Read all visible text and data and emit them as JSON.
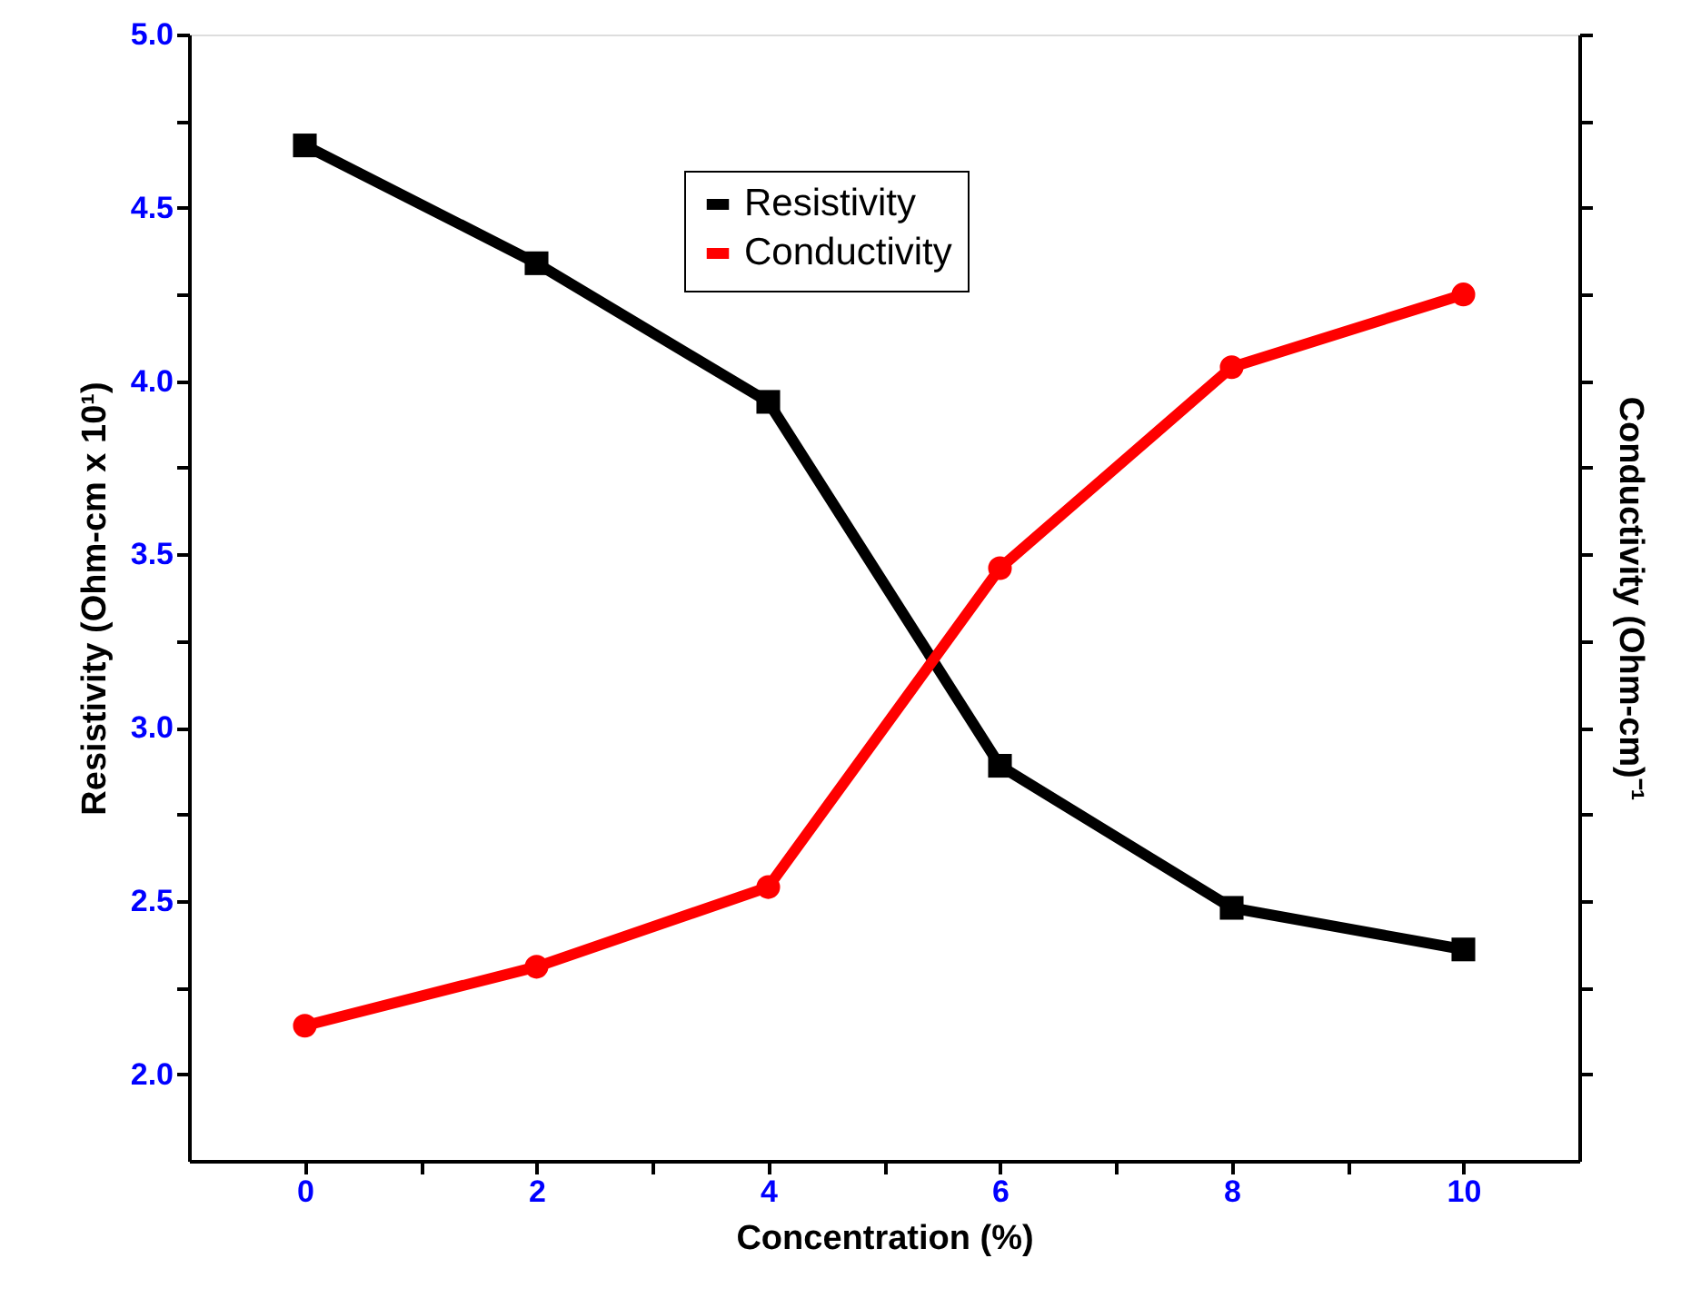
{
  "chart_data": {
    "type": "line",
    "xlabel": "Concentration (%)",
    "ylabel": "Resistivity (Ohm-cm x 10¹)",
    "y2label": "Conductivity (Ohm-cm)⁻¹",
    "x": [
      0,
      2,
      4,
      6,
      8,
      10
    ],
    "series": [
      {
        "name": "Resistivity",
        "color": "#000000",
        "marker": "square",
        "values": [
          4.68,
          4.34,
          3.94,
          2.89,
          2.48,
          2.36
        ]
      },
      {
        "name": "Conductivity",
        "color": "#ff0000",
        "marker": "circle",
        "values": [
          2.14,
          2.31,
          2.54,
          3.46,
          4.04,
          4.25
        ]
      }
    ],
    "xlim": [
      -1,
      11
    ],
    "xticks": [
      0,
      {
        "value": 1,
        "label": null
      },
      2,
      {
        "value": 3,
        "label": null
      },
      4,
      {
        "value": 5,
        "label": null
      },
      6,
      {
        "value": 7,
        "label": null
      },
      8,
      {
        "value": 9,
        "label": null
      },
      10
    ],
    "ylim": [
      1.75,
      5.0
    ],
    "yticks": [
      {
        "value": 2.0,
        "label": "2.0"
      },
      {
        "value": 2.25,
        "label": null
      },
      {
        "value": 2.5,
        "label": "2.5"
      },
      {
        "value": 2.75,
        "label": null
      },
      {
        "value": 3.0,
        "label": "3.0"
      },
      {
        "value": 3.25,
        "label": null
      },
      {
        "value": 3.5,
        "label": "3.5"
      },
      {
        "value": 3.75,
        "label": null
      },
      {
        "value": 4.0,
        "label": "4.0"
      },
      {
        "value": 4.25,
        "label": null
      },
      {
        "value": 4.5,
        "label": "4.5"
      },
      {
        "value": 4.75,
        "label": null
      },
      {
        "value": 5.0,
        "label": "5.0"
      }
    ],
    "tick_labels": [
      "x",
      "y"
    ],
    "grid": false,
    "legend": "top",
    "line_style": "solid"
  }
}
